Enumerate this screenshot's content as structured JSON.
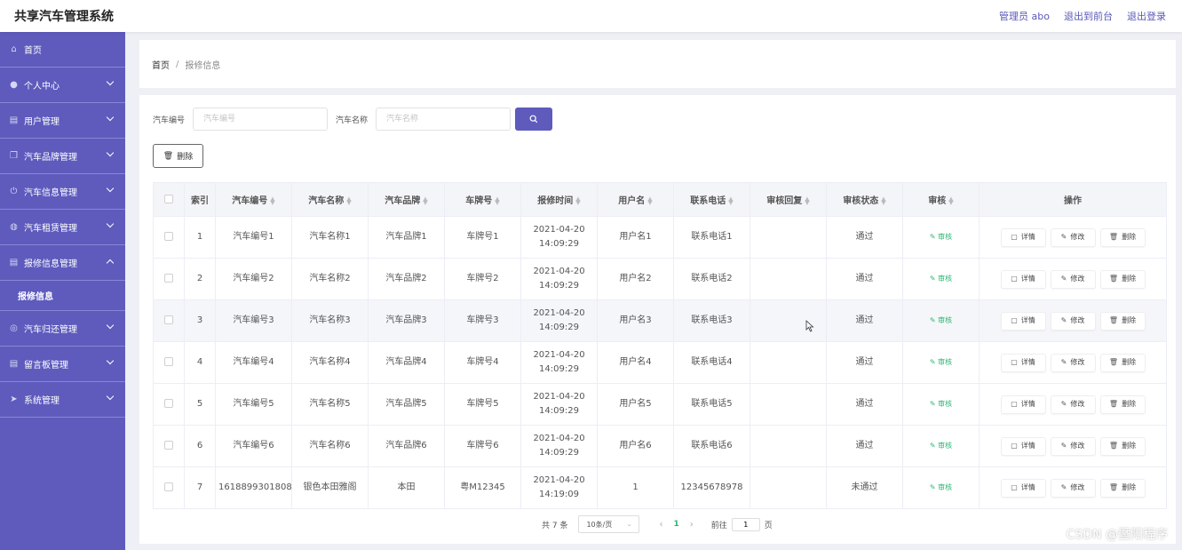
{
  "header": {
    "title": "共享汽车管理系统",
    "links": [
      "管理员 abo",
      "退出到前台",
      "退出登录"
    ]
  },
  "sidebar": {
    "items": [
      {
        "label": "首页",
        "icon": "home-icon",
        "has_children": false
      },
      {
        "label": "个人中心",
        "icon": "user-icon",
        "has_children": true
      },
      {
        "label": "用户管理",
        "icon": "clipboard-icon",
        "has_children": true
      },
      {
        "label": "汽车品牌管理",
        "icon": "copy-icon",
        "has_children": true
      },
      {
        "label": "汽车信息管理",
        "icon": "power-icon",
        "has_children": true
      },
      {
        "label": "汽车租赁管理",
        "icon": "globe-icon",
        "has_children": true
      },
      {
        "label": "报修信息管理",
        "icon": "clipboard-icon",
        "has_children": true,
        "expanded": true,
        "children": [
          "报修信息"
        ]
      },
      {
        "label": "汽车归还管理",
        "icon": "compass-icon",
        "has_children": true
      },
      {
        "label": "留言板管理",
        "icon": "clipboard-icon",
        "has_children": true
      },
      {
        "label": "系统管理",
        "icon": "send-icon",
        "has_children": true
      }
    ]
  },
  "breadcrumb": {
    "home": "首页",
    "separator": "/",
    "current": "报修信息"
  },
  "search": {
    "field1_label": "汽车编号",
    "field1_placeholder": "汽车编号",
    "field1_value": "",
    "field2_label": "汽车名称",
    "field2_placeholder": "汽车名称",
    "field2_value": ""
  },
  "toolbar": {
    "delete_label": "删除"
  },
  "table": {
    "columns": [
      "索引",
      "汽车编号",
      "汽车名称",
      "汽车品牌",
      "车牌号",
      "报修时间",
      "用户名",
      "联系电话",
      "审核回复",
      "审核状态",
      "审核",
      "操作"
    ],
    "sortable": [
      false,
      true,
      true,
      true,
      true,
      true,
      true,
      true,
      true,
      true,
      true,
      false
    ],
    "audit_label": "审核",
    "op_labels": {
      "detail": "详情",
      "edit": "修改",
      "delete": "删除"
    },
    "rows": [
      {
        "idx": "1",
        "code": "汽车编号1",
        "name": "汽车名称1",
        "brand": "汽车品牌1",
        "plate": "车牌号1",
        "time": "2021-04-20 14:09:29",
        "user": "用户名1",
        "phone": "联系电话1",
        "reply": "",
        "status": "通过"
      },
      {
        "idx": "2",
        "code": "汽车编号2",
        "name": "汽车名称2",
        "brand": "汽车品牌2",
        "plate": "车牌号2",
        "time": "2021-04-20 14:09:29",
        "user": "用户名2",
        "phone": "联系电话2",
        "reply": "",
        "status": "通过"
      },
      {
        "idx": "3",
        "code": "汽车编号3",
        "name": "汽车名称3",
        "brand": "汽车品牌3",
        "plate": "车牌号3",
        "time": "2021-04-20 14:09:29",
        "user": "用户名3",
        "phone": "联系电话3",
        "reply": "",
        "status": "通过"
      },
      {
        "idx": "4",
        "code": "汽车编号4",
        "name": "汽车名称4",
        "brand": "汽车品牌4",
        "plate": "车牌号4",
        "time": "2021-04-20 14:09:29",
        "user": "用户名4",
        "phone": "联系电话4",
        "reply": "",
        "status": "通过"
      },
      {
        "idx": "5",
        "code": "汽车编号5",
        "name": "汽车名称5",
        "brand": "汽车品牌5",
        "plate": "车牌号5",
        "time": "2021-04-20 14:09:29",
        "user": "用户名5",
        "phone": "联系电话5",
        "reply": "",
        "status": "通过"
      },
      {
        "idx": "6",
        "code": "汽车编号6",
        "name": "汽车名称6",
        "brand": "汽车品牌6",
        "plate": "车牌号6",
        "time": "2021-04-20 14:09:29",
        "user": "用户名6",
        "phone": "联系电话6",
        "reply": "",
        "status": "通过"
      },
      {
        "idx": "7",
        "code": "1618899301808",
        "name": "银色本田雅阁",
        "brand": "本田",
        "plate": "粤M12345",
        "time": "2021-04-20 14:19:09",
        "user": "1",
        "phone": "12345678978",
        "reply": "",
        "status": "未通过"
      }
    ]
  },
  "pagination": {
    "total_text": "共 7 条",
    "page_size": "10条/页",
    "current_page": "1",
    "goto_label": "前往",
    "goto_value": "1",
    "page_suffix": "页"
  },
  "watermark": "CSDN @暨阳程序",
  "colors": {
    "primary": "#5e5bbd",
    "success": "#2bb673",
    "background": "#eef0f5"
  }
}
